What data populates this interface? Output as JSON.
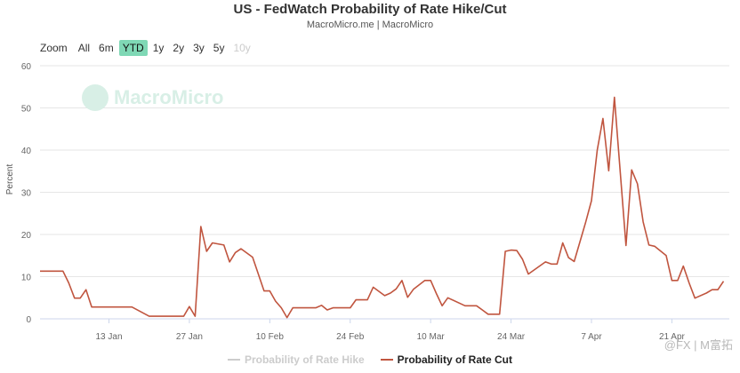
{
  "title": "US - FedWatch Probability of Rate Hike/Cut",
  "subtitle": "MacroMicro.me | MacroMicro",
  "watermark": "MacroMicro",
  "corner_mark": "@FX | M富拓",
  "zoom": {
    "label": "Zoom",
    "buttons": [
      "All",
      "6m",
      "YTD",
      "1y",
      "2y",
      "3y",
      "5y",
      "10y"
    ],
    "active": "YTD",
    "disabled": [
      "10y"
    ]
  },
  "colors": {
    "cut": "#c0553f",
    "hike_hidden": "#cccccc",
    "zoom_active": "#7fd8b5"
  },
  "chart_data": {
    "type": "line",
    "title": "US - FedWatch Probability of Rate Hike/Cut",
    "subtitle": "MacroMicro.me | MacroMicro",
    "ylabel": "Percent",
    "xlabel": "",
    "ylim": [
      0,
      60
    ],
    "yticks": [
      0,
      10,
      20,
      30,
      40,
      50,
      60
    ],
    "xlim": [
      "Jan 1",
      "May 1"
    ],
    "xticks": [
      "13 Jan",
      "27 Jan",
      "10 Feb",
      "24 Feb",
      "10 Mar",
      "24 Mar",
      "7 Apr",
      "21 Apr"
    ],
    "grid": "horizontal",
    "legend_position": "bottom",
    "series": [
      {
        "name": "Probability of Rate Hike",
        "visible": false,
        "x": [],
        "values": []
      },
      {
        "name": "Probability of Rate Cut",
        "visible": true,
        "x": [
          "Jan 1",
          "Jan 2",
          "Jan 3",
          "Jan 4",
          "Jan 5",
          "Jan 6",
          "Jan 7",
          "Jan 8",
          "Jan 9",
          "Jan 10",
          "Jan 13",
          "Jan 14",
          "Jan 15",
          "Jan 16",
          "Jan 17",
          "Jan 20",
          "Jan 21",
          "Jan 22",
          "Jan 23",
          "Jan 24",
          "Jan 26",
          "Jan 27",
          "Jan 28",
          "Jan 29",
          "Jan 30",
          "Jan 31",
          "Feb 2",
          "Feb 3",
          "Feb 4",
          "Feb 5",
          "Feb 6",
          "Feb 7",
          "Feb 9",
          "Feb 10",
          "Feb 11",
          "Feb 12",
          "Feb 13",
          "Feb 14",
          "Feb 17",
          "Feb 18",
          "Feb 19",
          "Feb 20",
          "Feb 21",
          "Feb 22",
          "Feb 24",
          "Feb 25",
          "Feb 26",
          "Feb 27",
          "Feb 28",
          "Mar 2",
          "Mar 3",
          "Mar 4",
          "Mar 5",
          "Mar 6",
          "Mar 7",
          "Mar 9",
          "Mar 10",
          "Mar 11",
          "Mar 12",
          "Mar 13",
          "Mar 16",
          "Mar 17",
          "Mar 18",
          "Mar 19",
          "Mar 20",
          "Mar 22",
          "Mar 23",
          "Mar 24",
          "Mar 25",
          "Mar 26",
          "Mar 27",
          "Mar 30",
          "Mar 31",
          "Apr 1",
          "Apr 2",
          "Apr 3",
          "Apr 4",
          "Apr 6",
          "Apr 7",
          "Apr 8",
          "Apr 9",
          "Apr 10",
          "Apr 11",
          "Apr 13",
          "Apr 14",
          "Apr 15",
          "Apr 16",
          "Apr 17",
          "Apr 18",
          "Apr 20",
          "Apr 21",
          "Apr 22",
          "Apr 23",
          "Apr 24",
          "Apr 25",
          "Apr 27",
          "Apr 28",
          "Apr 29",
          "Apr 30"
        ],
        "values": [
          11.3,
          11.3,
          11.3,
          11.3,
          11.3,
          8.5,
          4.9,
          4.9,
          6.9,
          2.8,
          2.8,
          2.8,
          2.8,
          2.8,
          2.8,
          0.6,
          0.6,
          0.6,
          0.6,
          0.6,
          0.6,
          2.9,
          0.6,
          21.9,
          16.0,
          18.0,
          17.5,
          13.5,
          15.7,
          16.6,
          15.6,
          14.6,
          6.6,
          6.6,
          4.2,
          2.6,
          0.3,
          2.6,
          2.6,
          2.6,
          3.2,
          2.1,
          2.6,
          2.6,
          2.6,
          4.5,
          4.5,
          4.5,
          7.5,
          5.5,
          6.1,
          7.1,
          9.1,
          5.1,
          7.0,
          9.1,
          9.1,
          6.0,
          3.1,
          5.0,
          3.1,
          3.1,
          3.1,
          2.1,
          1.1,
          1.1,
          16.0,
          16.3,
          16.2,
          14.1,
          10.6,
          13.5,
          13.0,
          13.0,
          18.0,
          14.5,
          13.6,
          22.9,
          28.0,
          40.0,
          47.5,
          35.1,
          52.5,
          17.4,
          35.3,
          32.0,
          23.0,
          17.5,
          17.2,
          15.0,
          9.1,
          9.1,
          12.5,
          8.5,
          4.9,
          6.1,
          6.9,
          6.9,
          8.9
        ]
      }
    ]
  }
}
